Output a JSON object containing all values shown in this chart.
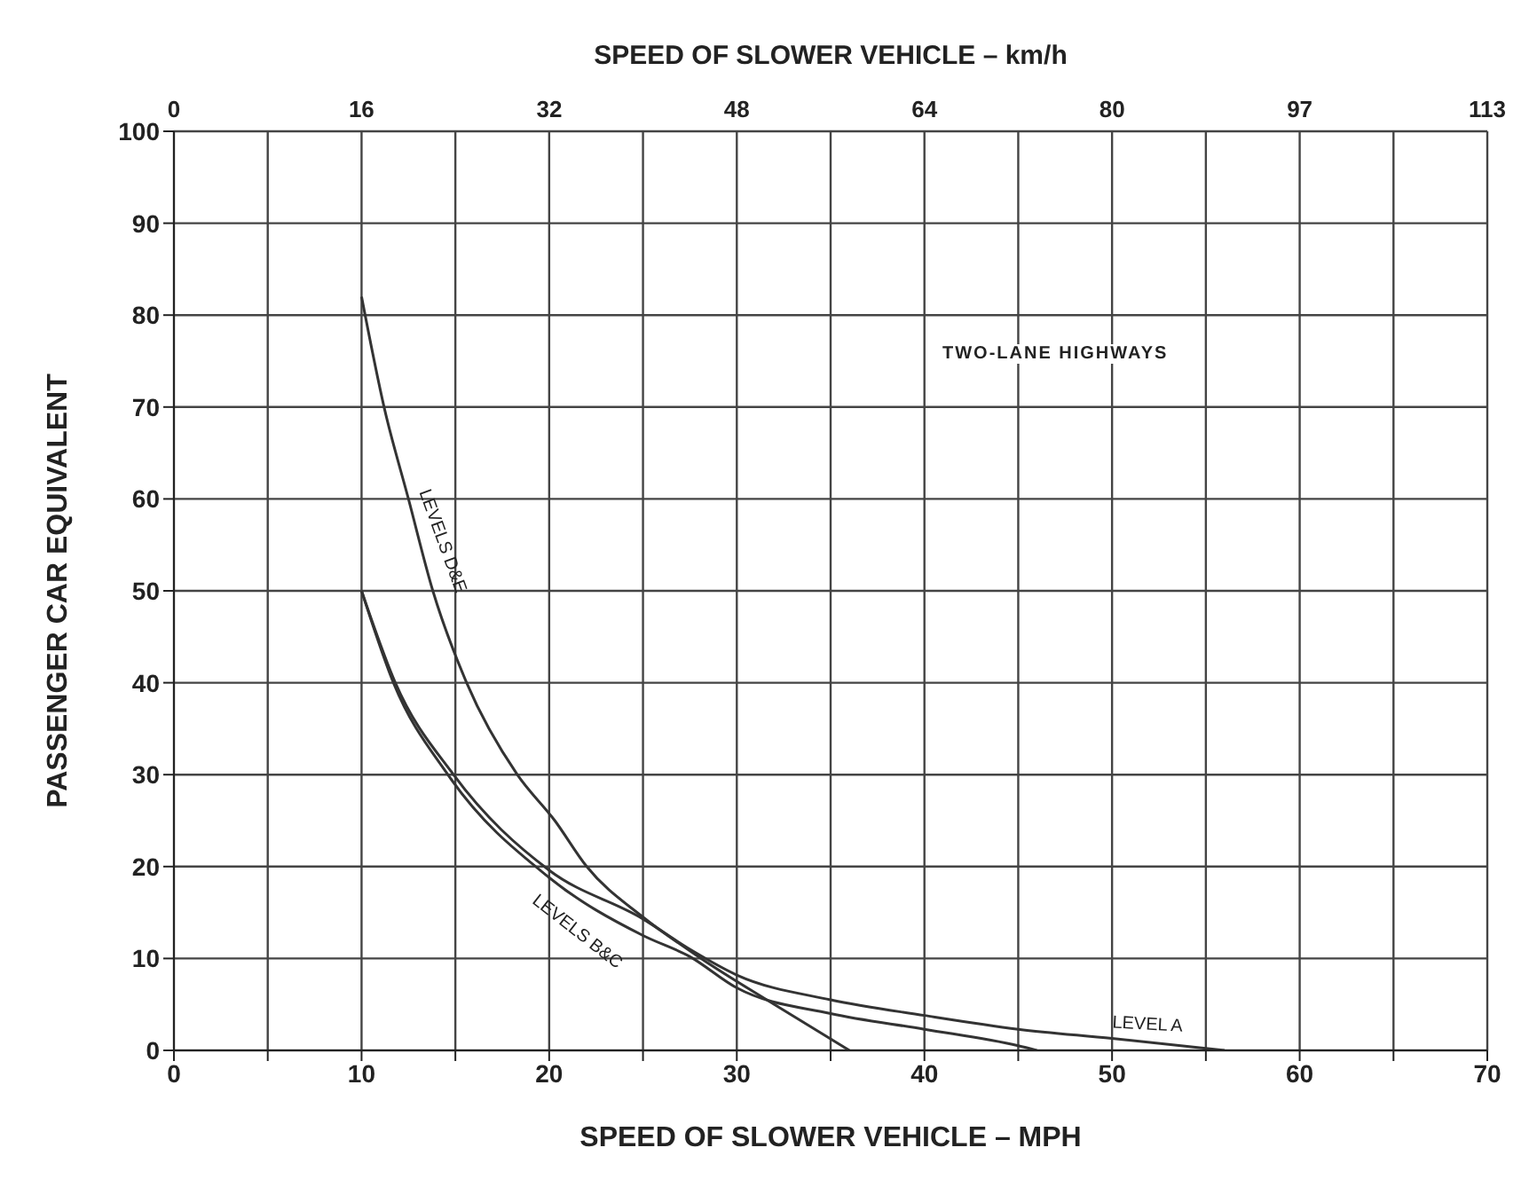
{
  "chart_data": {
    "type": "line",
    "annotations": [
      "TWO-LANE HIGHWAYS"
    ],
    "xlabel": "SPEED OF SLOWER VEHICLE – MPH",
    "x2label": "SPEED OF SLOWER VEHICLE – km/h",
    "ylabel": "PASSENGER CAR EQUIVALENT",
    "xlim": [
      0,
      70
    ],
    "xticks": [
      0,
      {
        "value": 5,
        "label": null
      },
      10,
      {
        "value": 15,
        "label": null
      },
      20,
      {
        "value": 25,
        "label": null
      },
      30,
      {
        "value": 35,
        "label": null
      },
      40,
      {
        "value": 45,
        "label": null
      },
      50,
      {
        "value": 55,
        "label": null
      },
      60,
      {
        "value": 65,
        "label": null
      },
      70
    ],
    "x2lim": [
      0,
      112.65
    ],
    "x2ticks": [
      0,
      {
        "value": 16.09,
        "label": "16"
      },
      {
        "value": 32.19,
        "label": "32"
      },
      {
        "value": 48.28,
        "label": "48"
      },
      {
        "value": 64.37,
        "label": "64"
      },
      {
        "value": 80.47,
        "label": "80"
      },
      {
        "value": 96.56,
        "label": "97"
      },
      {
        "value": 112.65,
        "label": "113"
      }
    ],
    "ylim": [
      0,
      100
    ],
    "yticks": [
      0,
      10,
      20,
      30,
      40,
      50,
      60,
      70,
      80,
      90,
      100
    ],
    "grid": true,
    "line_style": "solid",
    "series": [
      {
        "name": "LEVELS D&E",
        "color": "#333333",
        "x": [
          10,
          11.2,
          12.5,
          13.8,
          15.6,
          18.3,
          20.3,
          22,
          25,
          28.1,
          32,
          36
        ],
        "values": [
          82,
          70,
          60,
          50,
          40,
          30,
          25,
          20,
          14.5,
          10,
          5,
          0
        ]
      },
      {
        "name": "LEVELS B&C",
        "color": "#333333",
        "x": [
          10,
          11.7,
          14.6,
          20,
          25,
          27.5,
          30,
          35,
          40,
          45,
          46
        ],
        "values": [
          50,
          40,
          30,
          18.8,
          12.5,
          10.2,
          6.8,
          4,
          2.3,
          0.5,
          0
        ]
      },
      {
        "name": "LEVEL A",
        "color": "#333333",
        "x": [
          10,
          11.8,
          14.9,
          20,
          25,
          27.5,
          30,
          35,
          40,
          45,
          50,
          56
        ],
        "values": [
          50,
          40,
          30,
          19.6,
          14.3,
          11,
          8.2,
          5.5,
          3.8,
          2.3,
          1.3,
          0
        ]
      }
    ]
  }
}
